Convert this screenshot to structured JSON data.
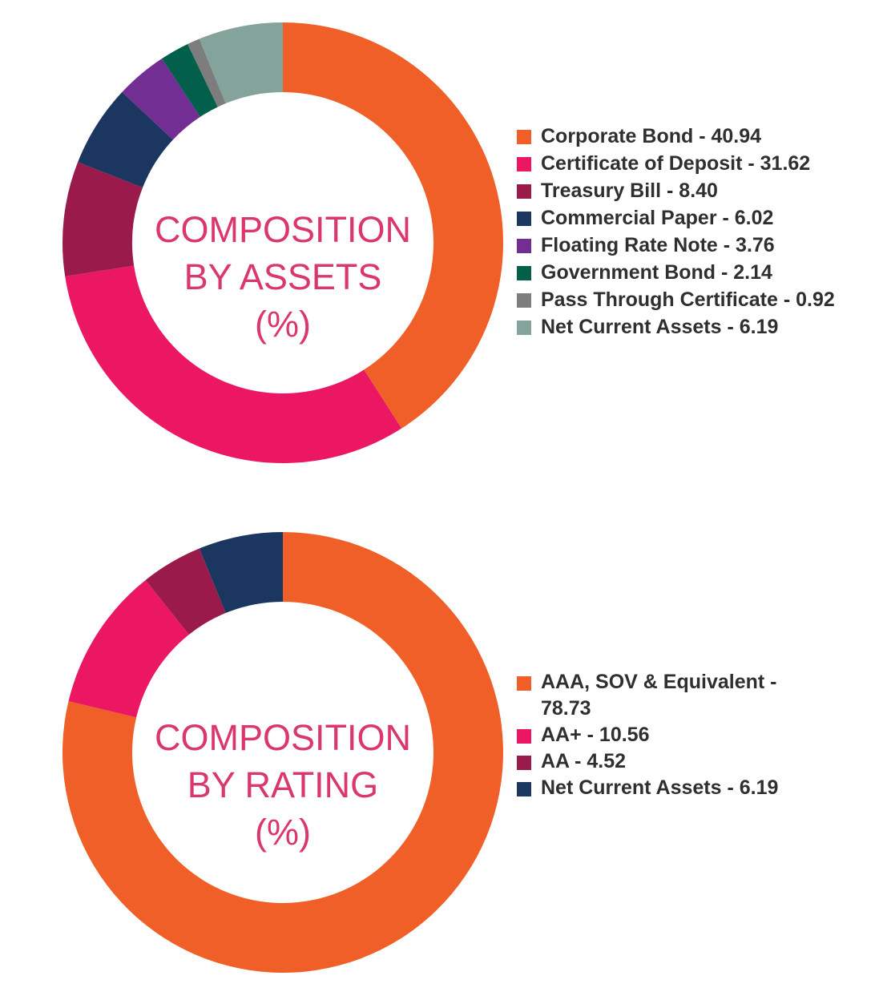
{
  "chart_data": [
    {
      "type": "pie",
      "title": "COMPOSITION BY ASSETS (%)",
      "title_lines": [
        "COMPOSITION",
        "BY ASSETS",
        "(%)"
      ],
      "categories": [
        "Corporate Bond",
        "Certificate of Deposit",
        "Treasury Bill",
        "Commercial Paper",
        "Floating Rate Note",
        "Government Bond",
        "Pass Through Certificate",
        "Net Current Assets"
      ],
      "values": [
        40.94,
        31.62,
        8.4,
        6.02,
        3.76,
        2.14,
        0.92,
        6.19
      ],
      "labels": [
        "Corporate Bond - 40.94",
        "Certificate of Deposit - 31.62",
        "Treasury Bill - 8.40",
        "Commercial Paper - 6.02",
        "Floating Rate Note - 3.76",
        "Government Bond - 2.14",
        "Pass Through Certificate - 0.92",
        "Net Current Assets - 6.19"
      ],
      "colors": [
        "#f05f27",
        "#ec1763",
        "#9a1b4b",
        "#1b365f",
        "#722e92",
        "#025f4c",
        "#7d7d7d",
        "#84a39b"
      ],
      "legend": "right"
    },
    {
      "type": "pie",
      "title": "COMPOSITION BY RATING (%)",
      "title_lines": [
        "COMPOSITION",
        "BY RATING",
        "(%)"
      ],
      "categories": [
        "AAA, SOV & Equivalent",
        "AA+",
        "AA",
        "Net Current Assets"
      ],
      "values": [
        78.73,
        10.56,
        4.52,
        6.19
      ],
      "labels": [
        "AAA, SOV & Equivalent - 78.73",
        "AA+ - 10.56",
        "AA - 4.52",
        "Net Current Assets - 6.19"
      ],
      "colors": [
        "#f05f27",
        "#ec1763",
        "#9a1b4b",
        "#1b365f"
      ],
      "legend": "right"
    }
  ]
}
